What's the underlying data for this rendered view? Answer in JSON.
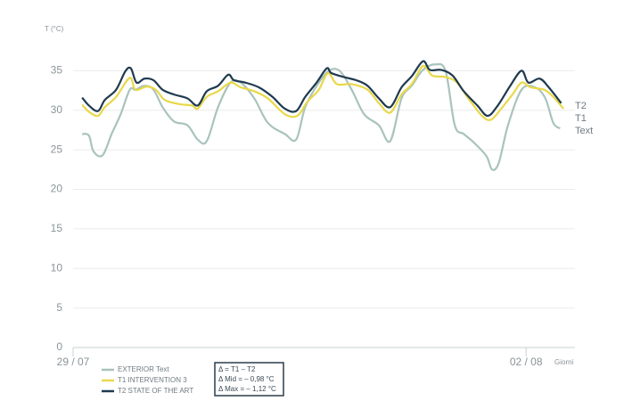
{
  "chart_data": {
    "type": "line",
    "y_label": "T (°C)",
    "x_label": "Giorni",
    "xlim": [
      0,
      4.4
    ],
    "xticks": [
      {
        "value": 0,
        "label": "29 / 07"
      },
      {
        "value": 4,
        "label": "02 / 08"
      }
    ],
    "ylim": [
      0,
      40
    ],
    "yticks": [
      0,
      5,
      10,
      15,
      20,
      25,
      30,
      35
    ],
    "grid": true,
    "series": [
      {
        "name": "EXTERIOR Text",
        "end_label": "Text",
        "color": "#a9c3bd",
        "x": [
          0.08,
          0.14,
          0.18,
          0.26,
          0.34,
          0.42,
          0.5,
          0.55,
          0.63,
          0.71,
          0.79,
          0.89,
          1.01,
          1.1,
          1.18,
          1.28,
          1.39,
          1.48,
          1.6,
          1.72,
          1.87,
          1.97,
          2.05,
          2.17,
          2.27,
          2.36,
          2.46,
          2.57,
          2.7,
          2.8,
          2.9,
          2.99,
          3.09,
          3.2,
          3.29,
          3.37,
          3.45,
          3.54,
          3.65,
          3.7,
          3.76,
          3.84,
          3.96,
          4.08,
          4.17,
          4.24,
          4.3
        ],
        "values": [
          27.0,
          26.8,
          24.8,
          24.3,
          27.0,
          29.5,
          32.6,
          32.6,
          33.1,
          32.6,
          30.4,
          28.6,
          28.1,
          26.3,
          26.1,
          30.4,
          33.5,
          33.5,
          31.5,
          28.4,
          27.0,
          26.3,
          30.4,
          33.5,
          35.1,
          34.9,
          32.6,
          29.5,
          28.1,
          26.1,
          31.5,
          33.1,
          35.1,
          35.8,
          34.9,
          28.1,
          27.0,
          25.9,
          24.2,
          22.5,
          23.4,
          28.1,
          32.6,
          32.9,
          31.5,
          28.4,
          27.7
        ]
      },
      {
        "name": "T1 INTERVENTION 3",
        "end_label": "T1",
        "color": "#e8d84a",
        "x": [
          0.08,
          0.14,
          0.22,
          0.28,
          0.38,
          0.5,
          0.55,
          0.65,
          0.73,
          0.81,
          0.93,
          1.05,
          1.1,
          1.18,
          1.28,
          1.39,
          1.48,
          1.6,
          1.72,
          1.87,
          1.98,
          2.07,
          2.17,
          2.25,
          2.33,
          2.46,
          2.6,
          2.7,
          2.8,
          2.9,
          2.99,
          3.09,
          3.17,
          3.29,
          3.39,
          3.49,
          3.61,
          3.69,
          3.78,
          3.88,
          3.96,
          4.04,
          4.16,
          4.24,
          4.33
        ],
        "values": [
          30.7,
          29.8,
          29.3,
          30.4,
          31.7,
          34.1,
          32.6,
          33.0,
          32.6,
          31.3,
          30.8,
          30.6,
          30.2,
          31.7,
          32.4,
          33.5,
          32.9,
          32.4,
          31.5,
          29.5,
          29.3,
          31.1,
          32.6,
          34.7,
          33.3,
          33.3,
          32.6,
          30.9,
          29.7,
          32.0,
          33.3,
          35.6,
          34.4,
          34.2,
          33.5,
          31.5,
          29.3,
          28.8,
          30.2,
          32.0,
          33.5,
          32.9,
          32.6,
          31.7,
          30.2
        ]
      },
      {
        "name": "T2 STATE OF THE ART",
        "end_label": "T2",
        "color": "#1f3a4f",
        "x": [
          0.08,
          0.14,
          0.22,
          0.28,
          0.38,
          0.46,
          0.51,
          0.56,
          0.63,
          0.71,
          0.79,
          0.89,
          1.01,
          1.1,
          1.18,
          1.28,
          1.37,
          1.42,
          1.52,
          1.64,
          1.76,
          1.87,
          1.97,
          2.05,
          2.15,
          2.24,
          2.28,
          2.39,
          2.5,
          2.6,
          2.7,
          2.8,
          2.9,
          2.99,
          3.09,
          3.15,
          3.25,
          3.35,
          3.45,
          3.57,
          3.66,
          3.75,
          3.86,
          3.96,
          4.02,
          4.12,
          4.2,
          4.31
        ],
        "values": [
          31.6,
          30.6,
          29.9,
          31.3,
          32.6,
          34.9,
          35.3,
          33.5,
          34.0,
          33.8,
          32.6,
          32.0,
          31.5,
          30.6,
          32.4,
          33.1,
          34.5,
          33.8,
          33.5,
          32.9,
          31.7,
          30.2,
          29.9,
          31.7,
          33.5,
          35.3,
          34.7,
          34.2,
          33.8,
          33.1,
          31.5,
          30.4,
          32.9,
          34.3,
          36.2,
          35.1,
          35.1,
          34.4,
          32.4,
          30.6,
          29.3,
          30.6,
          33.1,
          35.0,
          33.5,
          34.0,
          32.9,
          30.9
        ]
      }
    ],
    "note_lines": [
      "Δ = T1 – T2",
      "Δ Mid = – 0,98 °C",
      "Δ Max = – 1,12 °C"
    ]
  }
}
